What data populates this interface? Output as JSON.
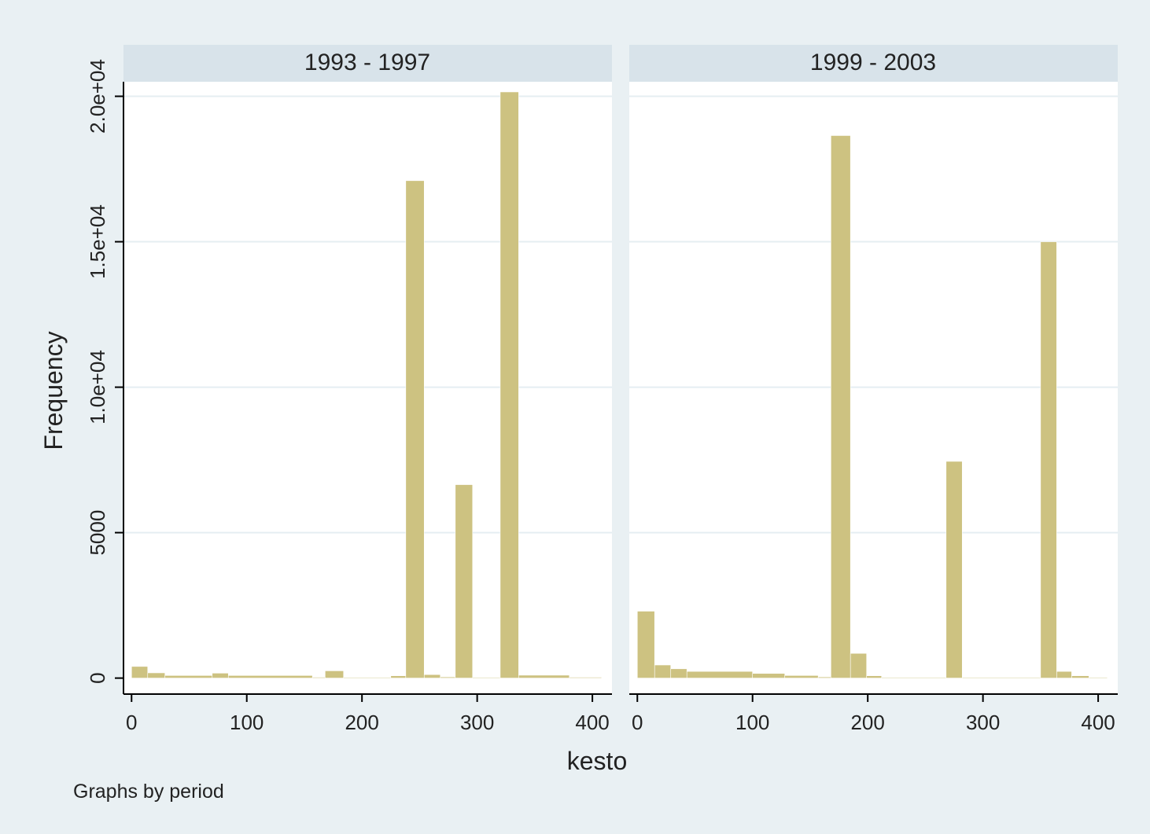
{
  "chart_data": {
    "type": "bar",
    "ylabel": "Frequency",
    "xlabel": "kesto",
    "note": "Graphs by period",
    "x_ticks": [
      "0",
      "100",
      "200",
      "300",
      "400"
    ],
    "y_ticks": [
      "0",
      "5000",
      "1.0e+04",
      "1.5e+04",
      "2.0e+04"
    ],
    "xlim": [
      -7,
      417
    ],
    "ylim": [
      -550,
      20500
    ],
    "grid": true,
    "colors": {
      "bar": "#cdc281",
      "panel_header": "#d8e3ea",
      "outer_background": "#e9f0f3",
      "plot_background": "#ffffff",
      "grid": "#e5eef2"
    },
    "panels": [
      {
        "title": "1993 - 1997",
        "bins": [
          {
            "x0": 0,
            "x1": 14,
            "value": 400
          },
          {
            "x0": 14,
            "x1": 29,
            "value": 180
          },
          {
            "x0": 29,
            "x1": 70,
            "value": 90
          },
          {
            "x0": 70,
            "x1": 84,
            "value": 170
          },
          {
            "x0": 84,
            "x1": 157,
            "value": 90
          },
          {
            "x0": 157,
            "x1": 168,
            "value": 30
          },
          {
            "x0": 168,
            "x1": 184,
            "value": 250
          },
          {
            "x0": 184,
            "x1": 225,
            "value": 20
          },
          {
            "x0": 225,
            "x1": 238,
            "value": 80
          },
          {
            "x0": 238,
            "x1": 254,
            "value": 17100
          },
          {
            "x0": 254,
            "x1": 268,
            "value": 120
          },
          {
            "x0": 268,
            "x1": 281,
            "value": 40
          },
          {
            "x0": 281,
            "x1": 296,
            "value": 6650
          },
          {
            "x0": 296,
            "x1": 320,
            "value": 20
          },
          {
            "x0": 320,
            "x1": 336,
            "value": 20150
          },
          {
            "x0": 336,
            "x1": 380,
            "value": 100
          },
          {
            "x0": 380,
            "x1": 408,
            "value": 30
          }
        ]
      },
      {
        "title": "1999 - 2003",
        "bins": [
          {
            "x0": 0,
            "x1": 15,
            "value": 2300
          },
          {
            "x0": 15,
            "x1": 29,
            "value": 450
          },
          {
            "x0": 29,
            "x1": 43,
            "value": 320
          },
          {
            "x0": 43,
            "x1": 100,
            "value": 230
          },
          {
            "x0": 100,
            "x1": 128,
            "value": 160
          },
          {
            "x0": 128,
            "x1": 157,
            "value": 90
          },
          {
            "x0": 157,
            "x1": 168,
            "value": 40
          },
          {
            "x0": 168,
            "x1": 185,
            "value": 18650
          },
          {
            "x0": 185,
            "x1": 199,
            "value": 850
          },
          {
            "x0": 199,
            "x1": 212,
            "value": 80
          },
          {
            "x0": 212,
            "x1": 268,
            "value": 20
          },
          {
            "x0": 268,
            "x1": 282,
            "value": 7450
          },
          {
            "x0": 282,
            "x1": 350,
            "value": 20
          },
          {
            "x0": 350,
            "x1": 364,
            "value": 15000
          },
          {
            "x0": 364,
            "x1": 377,
            "value": 230
          },
          {
            "x0": 377,
            "x1": 392,
            "value": 80
          },
          {
            "x0": 392,
            "x1": 408,
            "value": 20
          }
        ]
      }
    ]
  }
}
